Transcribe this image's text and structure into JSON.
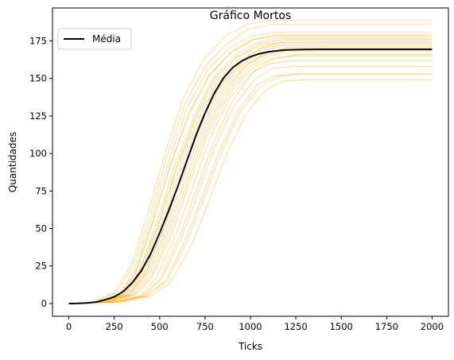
{
  "chart_data": {
    "type": "line",
    "title": "Gráfico Mortos",
    "xlabel": "Ticks",
    "ylabel": "Quantidades",
    "xlim": [
      -90,
      2090
    ],
    "ylim": [
      -8.5,
      197
    ],
    "xticks": [
      0,
      250,
      500,
      750,
      1000,
      1250,
      1500,
      1750,
      2000
    ],
    "yticks": [
      0,
      25,
      50,
      75,
      100,
      125,
      150,
      175
    ],
    "grid": false,
    "legend": {
      "position": "top-left",
      "entries": [
        "Média"
      ]
    },
    "colors": {
      "runs": "#ffa500",
      "mean": "#000000"
    },
    "mean_series": {
      "name": "Média",
      "x": [
        0,
        50,
        100,
        150,
        200,
        250,
        300,
        350,
        400,
        450,
        500,
        550,
        600,
        650,
        700,
        750,
        800,
        850,
        900,
        950,
        1000,
        1050,
        1100,
        1150,
        1200,
        1250,
        1300,
        1400,
        1500,
        1600,
        1700,
        1800,
        1900,
        2000
      ],
      "y": [
        0,
        0.1,
        0.4,
        1,
        2.5,
        4.5,
        8,
        14,
        22,
        33,
        47,
        62,
        78,
        95,
        112,
        127,
        140,
        150,
        157,
        161.5,
        164.5,
        166.5,
        167.8,
        168.5,
        169,
        169.2,
        169.3,
        169.4,
        169.4,
        169.4,
        169.4,
        169.4,
        169.4,
        169.4
      ]
    },
    "runs": [
      {
        "x": [
          0,
          170,
          300,
          380,
          500,
          590,
          700,
          800,
          930,
          1050,
          1180,
          2000
        ],
        "y": [
          0,
          1,
          6,
          20,
          55,
          90,
          125,
          150,
          165,
          173,
          176,
          176
        ]
      },
      {
        "x": [
          0,
          200,
          330,
          420,
          530,
          620,
          730,
          850,
          970,
          1080,
          1200,
          2000
        ],
        "y": [
          0,
          1,
          6,
          19,
          52,
          86,
          120,
          145,
          160,
          167,
          170,
          170
        ]
      },
      {
        "x": [
          0,
          220,
          360,
          450,
          560,
          650,
          760,
          880,
          1000,
          1100,
          1230,
          2000
        ],
        "y": [
          0,
          1,
          6,
          18,
          48,
          80,
          115,
          142,
          158,
          165,
          168,
          168
        ]
      },
      {
        "x": [
          0,
          150,
          280,
          360,
          460,
          550,
          650,
          760,
          880,
          1000,
          1130,
          2000
        ],
        "y": [
          0,
          1,
          6,
          22,
          58,
          95,
          130,
          155,
          170,
          178,
          181,
          181
        ]
      },
      {
        "x": [
          0,
          250,
          400,
          500,
          610,
          700,
          800,
          900,
          1020,
          1120,
          1250,
          2000
        ],
        "y": [
          0,
          1,
          5,
          16,
          45,
          75,
          108,
          135,
          155,
          163,
          166,
          166
        ]
      },
      {
        "x": [
          0,
          180,
          310,
          400,
          510,
          600,
          710,
          820,
          940,
          1060,
          1190,
          2000
        ],
        "y": [
          0,
          1,
          6,
          20,
          54,
          88,
          122,
          148,
          162,
          170,
          173,
          173
        ]
      },
      {
        "x": [
          0,
          270,
          420,
          530,
          640,
          730,
          830,
          930,
          1040,
          1140,
          1260,
          2000
        ],
        "y": [
          0,
          1,
          5,
          15,
          42,
          70,
          102,
          128,
          146,
          152,
          153,
          153
        ]
      },
      {
        "x": [
          0,
          140,
          260,
          350,
          450,
          540,
          640,
          750,
          870,
          990,
          1120,
          2000
        ],
        "y": [
          0,
          1,
          7,
          24,
          60,
          98,
          133,
          158,
          173,
          183,
          186,
          186
        ]
      },
      {
        "x": [
          0,
          160,
          290,
          370,
          470,
          560,
          660,
          770,
          890,
          1010,
          1140,
          2000
        ],
        "y": [
          0,
          1,
          6,
          21,
          57,
          92,
          127,
          152,
          167,
          176,
          179,
          179
        ]
      },
      {
        "x": [
          0,
          300,
          450,
          560,
          680,
          770,
          870,
          970,
          1080,
          1170,
          1280,
          2000
        ],
        "y": [
          0,
          1,
          5,
          14,
          40,
          68,
          100,
          125,
          142,
          148,
          149,
          149
        ]
      },
      {
        "x": [
          0,
          120,
          250,
          340,
          440,
          530,
          630,
          740,
          860,
          980,
          1110,
          2000
        ],
        "y": [
          0,
          1,
          7,
          25,
          62,
          100,
          137,
          162,
          178,
          186,
          189,
          189
        ]
      },
      {
        "x": [
          0,
          210,
          340,
          430,
          540,
          630,
          740,
          860,
          980,
          1090,
          1210,
          2000
        ],
        "y": [
          0,
          1,
          6,
          19,
          50,
          84,
          118,
          144,
          159,
          166,
          169,
          169
        ]
      },
      {
        "x": [
          0,
          230,
          370,
          460,
          570,
          660,
          770,
          890,
          1010,
          1110,
          1240,
          2000
        ],
        "y": [
          0,
          1,
          6,
          18,
          47,
          79,
          114,
          141,
          157,
          163,
          165,
          165
        ]
      },
      {
        "x": [
          0,
          190,
          320,
          410,
          520,
          610,
          720,
          840,
          960,
          1070,
          1200,
          2000
        ],
        "y": [
          0,
          1,
          6,
          20,
          53,
          87,
          121,
          147,
          161,
          169,
          172,
          172
        ]
      },
      {
        "x": [
          0,
          260,
          410,
          510,
          620,
          710,
          810,
          910,
          1030,
          1130,
          1250,
          2000
        ],
        "y": [
          0,
          1,
          5,
          16,
          44,
          73,
          106,
          132,
          150,
          157,
          158,
          158
        ]
      },
      {
        "x": [
          0,
          170,
          300,
          390,
          490,
          580,
          690,
          800,
          920,
          1040,
          1170,
          2000
        ],
        "y": [
          0,
          1,
          6,
          21,
          56,
          91,
          125,
          151,
          166,
          174,
          177,
          177
        ]
      },
      {
        "x": [
          0,
          240,
          390,
          480,
          590,
          680,
          780,
          890,
          1010,
          1110,
          1240,
          2000
        ],
        "y": [
          0,
          1,
          5,
          17,
          46,
          77,
          111,
          138,
          154,
          160,
          162,
          162
        ]
      },
      {
        "x": [
          0,
          200,
          330,
          420,
          530,
          620,
          720,
          840,
          960,
          1070,
          1200,
          2000
        ],
        "y": [
          0,
          1,
          6,
          20,
          52,
          86,
          120,
          146,
          162,
          171,
          175,
          175
        ]
      },
      {
        "x": [
          0,
          220,
          350,
          440,
          550,
          640,
          750,
          870,
          990,
          1090,
          1220,
          2000
        ],
        "y": [
          0,
          1,
          6,
          19,
          49,
          82,
          116,
          143,
          160,
          167,
          171,
          171
        ]
      },
      {
        "x": [
          0,
          280,
          430,
          540,
          650,
          740,
          840,
          940,
          1050,
          1150,
          1270,
          2000
        ],
        "y": [
          0,
          1,
          5,
          15,
          41,
          69,
          101,
          127,
          144,
          151,
          153,
          153
        ]
      },
      {
        "x": [
          0,
          160,
          280,
          370,
          470,
          560,
          670,
          780,
          900,
          1020,
          1150,
          2000
        ],
        "y": [
          0,
          1,
          6,
          22,
          57,
          93,
          128,
          153,
          168,
          176,
          178,
          178
        ]
      },
      {
        "x": [
          0,
          190,
          310,
          400,
          500,
          590,
          700,
          810,
          930,
          1050,
          1180,
          2000
        ],
        "y": [
          0,
          1,
          6,
          21,
          55,
          89,
          123,
          149,
          164,
          172,
          174,
          174
        ]
      }
    ]
  }
}
